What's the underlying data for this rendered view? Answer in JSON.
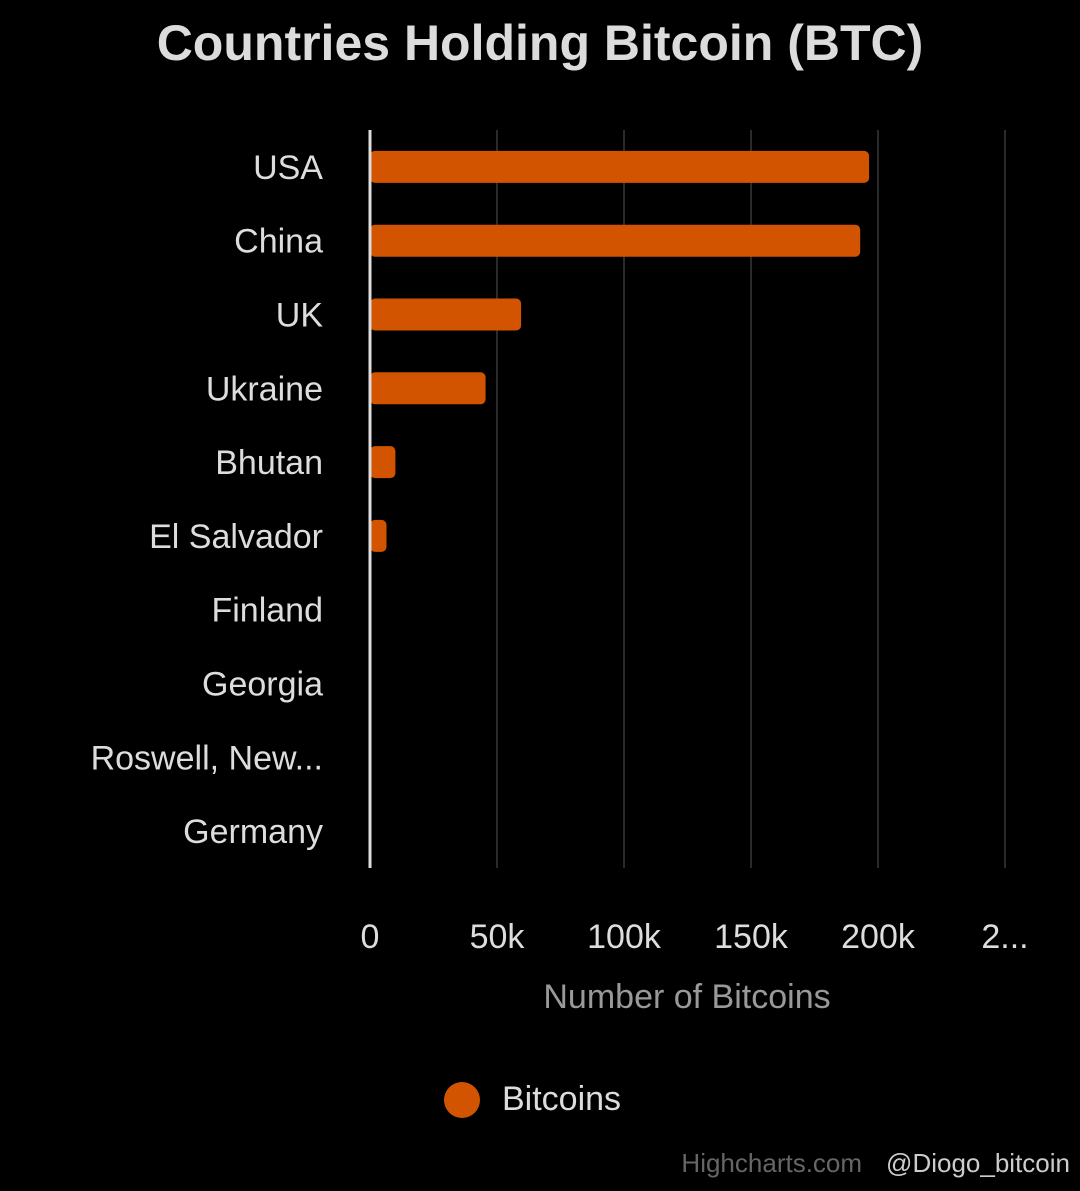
{
  "chart_data": {
    "type": "bar",
    "orientation": "horizontal",
    "title": "Countries Holding Bitcoin (BTC)",
    "xlabel": "Number of Bitcoins",
    "ylabel": "",
    "categories": [
      "USA",
      "China",
      "UK",
      "Ukraine",
      "Bhutan",
      "El Salvador",
      "Finland",
      "Georgia",
      "Roswell, New...",
      "Germany"
    ],
    "series": [
      {
        "name": "Bitcoins",
        "values": [
          196500,
          193000,
          59500,
          45500,
          10000,
          6500,
          0,
          0,
          0,
          0
        ],
        "color": "#d35400"
      }
    ],
    "xlim": [
      0,
      250000
    ],
    "ticks": [
      "0",
      "50k",
      "100k",
      "150k",
      "200k",
      "2..."
    ],
    "tick_values": [
      0,
      50000,
      100000,
      150000,
      200000,
      250000
    ],
    "grid": true,
    "legend": "bottom-center",
    "background": "#000000"
  },
  "credit": "Highcharts.com",
  "watermark": "@Diogo_bitcoin"
}
